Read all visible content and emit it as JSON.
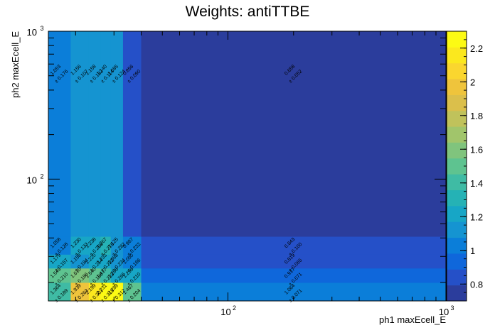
{
  "chart_data": {
    "type": "heatmap",
    "title": "Weights: antiTTBE",
    "xlabel": "ph1 maxEcell_E",
    "ylabel": "ph2 maxEcell_E",
    "x_scale": "log",
    "y_scale": "log",
    "xlim": [
      15,
      1000
    ],
    "ylim": [
      15,
      1000
    ],
    "x_ticks": [
      {
        "base": "10",
        "exp": "2"
      },
      {
        "base": "10",
        "exp": "3"
      }
    ],
    "y_ticks": [
      {
        "base": "10",
        "exp": "2"
      },
      {
        "base": "10",
        "exp": "3"
      }
    ],
    "x_edges": [
      15,
      19,
      23,
      26,
      29,
      33,
      40,
      1000
    ],
    "y_edges": [
      15,
      20,
      25,
      31,
      41,
      1000
    ],
    "z_range": [
      0.7,
      2.3
    ],
    "palette_ticks": [
      "0.8",
      "1",
      "1.2",
      "1.4",
      "1.6",
      "1.8",
      "2",
      "2.2"
    ],
    "palette_colors": [
      "#2b3d9c",
      "#2550c8",
      "#0f67db",
      "#0b7ed9",
      "#1594d1",
      "#17a6c6",
      "#25b2b5",
      "#3fbba4",
      "#5ec390",
      "#80c47d",
      "#a1c56b",
      "#c0c25b",
      "#dbbf4b",
      "#efc43c",
      "#fad62f",
      "#fbe81e",
      "#fcfa14"
    ],
    "values": [
      [
        1.364,
        1.939,
        2.199,
        2.231,
        2.289,
        1.467,
        1.064
      ],
      [
        1.543,
        1.61,
        1.54,
        1.417,
        1.206,
        1.256,
        0.917
      ],
      [
        1.179,
        1.158,
        1.22,
        1.233,
        1.098,
        1.05,
        0.819
      ],
      [
        1.058,
        1.23,
        1.238,
        1.267,
        1.125,
        0.987,
        0.843
      ],
      [
        1.053,
        1.156,
        1.158,
        1.14,
        1.085,
        0.856,
        0.658
      ]
    ],
    "cell_values": [
      [
        {
          "v": "1.364",
          "e": "± 0.189"
        },
        {
          "v": "1.939",
          "e": "± 0.263"
        },
        {
          "v": "2.199",
          "e": "± 0.301"
        },
        {
          "v": "2.231",
          "e": "± 0.318"
        },
        {
          "v": "2.289",
          "e": "± 0.312"
        },
        {
          "v": "1.467",
          "e": "± 0.204"
        },
        {
          "v": "1.064",
          "e": "± 0.071"
        }
      ],
      [
        {
          "v": "1.543",
          "e": "± 0.210"
        },
        {
          "v": "1.610",
          "e": "± 0.186"
        },
        {
          "v": "1.540",
          "e": "± 0.188"
        },
        {
          "v": "1.417",
          "e": "± 0.223"
        },
        {
          "v": "1.206",
          "e": "± 0.265"
        },
        {
          "v": "1.256",
          "e": "± 0.210"
        },
        {
          "v": "0.917",
          "e": "± 0.071"
        }
      ],
      [
        {
          "v": "1.179",
          "e": "± 0.157"
        },
        {
          "v": "1.158",
          "e": "± 0.184"
        },
        {
          "v": "1.220",
          "e": "± 0.214"
        },
        {
          "v": "1.233",
          "e": "± 0.222"
        },
        {
          "v": "1.098",
          "e": "± 0.234"
        },
        {
          "v": "1.050",
          "e": "± 0.186"
        },
        {
          "v": "0.819",
          "e": "± 0.065"
        }
      ],
      [
        {
          "v": "1.058",
          "e": "± 0.128"
        },
        {
          "v": "1.230",
          "e": "± 0.133"
        },
        {
          "v": "1.238",
          "e": "± 0.206"
        },
        {
          "v": "1.267",
          "e": "± 0.278"
        },
        {
          "v": "1.125",
          "e": "± 0.282"
        },
        {
          "v": "0.987",
          "e": "± 0.232"
        },
        {
          "v": "0.843",
          "e": "± 0.100"
        }
      ],
      [
        {
          "v": "1.053",
          "e": "± 0.176"
        },
        {
          "v": "1.156",
          "e": "± 0.107"
        },
        {
          "v": "1.158",
          "e": "± 0.132"
        },
        {
          "v": "1.140",
          "e": "± 0.114"
        },
        {
          "v": "1.085",
          "e": "± 0.124"
        },
        {
          "v": "0.856",
          "e": "± 0.090"
        },
        {
          "v": "0.658",
          "e": "± 0.052"
        }
      ]
    ]
  }
}
